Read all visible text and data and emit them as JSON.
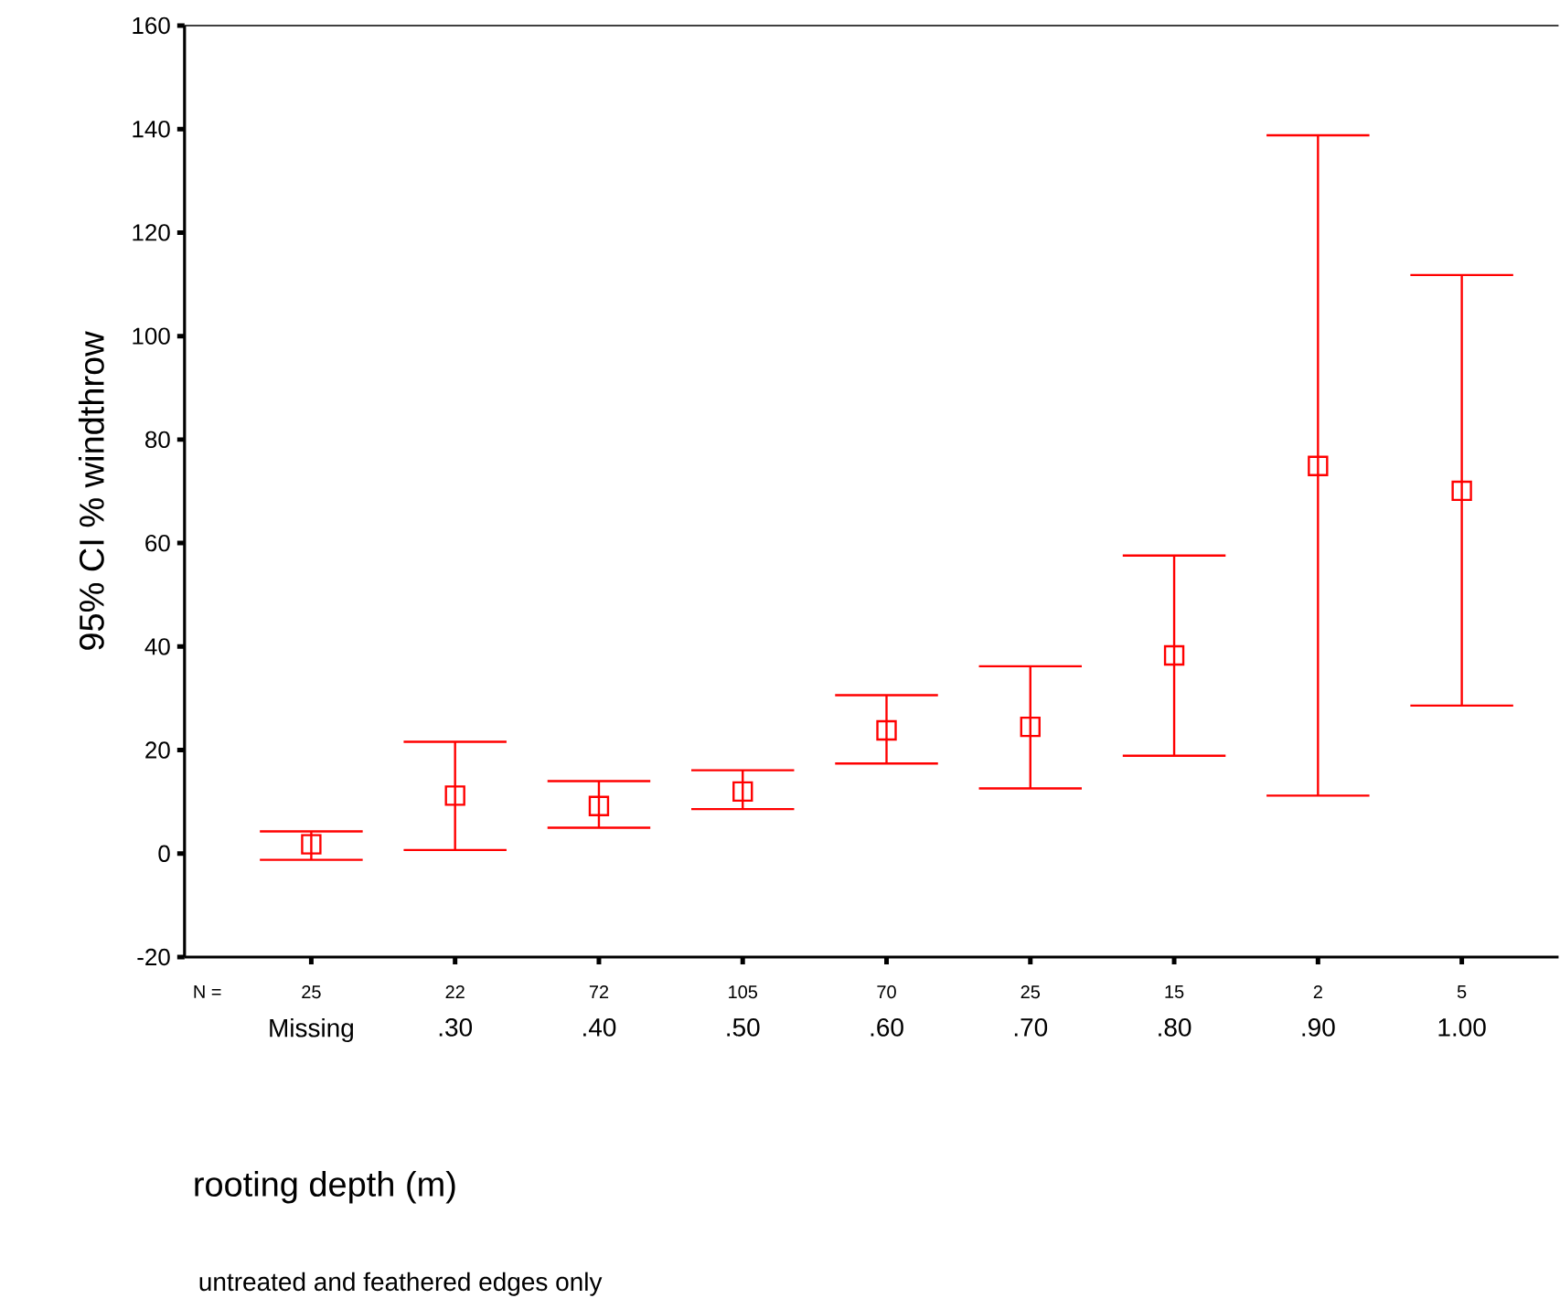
{
  "chart_data": {
    "type": "scatter",
    "ylabel": "95% CI % windthrow",
    "xlabel": "rooting depth (m)",
    "categories": [
      "Missing",
      ".30",
      ".40",
      ".50",
      ".60",
      ".70",
      ".80",
      ".90",
      "1.00"
    ],
    "values": [
      1.8,
      11.2,
      9.2,
      12.0,
      23.8,
      24.5,
      38.3,
      74.9,
      70.1
    ],
    "errors": [
      [
        -1.2,
        4.3
      ],
      [
        0.7,
        21.6
      ],
      [
        5.0,
        14.0
      ],
      [
        8.6,
        16.1
      ],
      [
        17.4,
        30.6
      ],
      [
        12.6,
        36.2
      ],
      [
        18.9,
        57.6
      ],
      [
        11.2,
        138.8
      ],
      [
        28.6,
        111.8
      ]
    ],
    "color": "#ff0000",
    "marker": "square",
    "ylim": [
      -20,
      160
    ],
    "yticks": [
      -20,
      0,
      20,
      40,
      60,
      80,
      100,
      120,
      140,
      160
    ],
    "annotations": [
      "N =",
      "25",
      "22",
      "72",
      "105",
      "70",
      "25",
      "15",
      "2",
      "5",
      "untreated and feathered edges only"
    ]
  }
}
